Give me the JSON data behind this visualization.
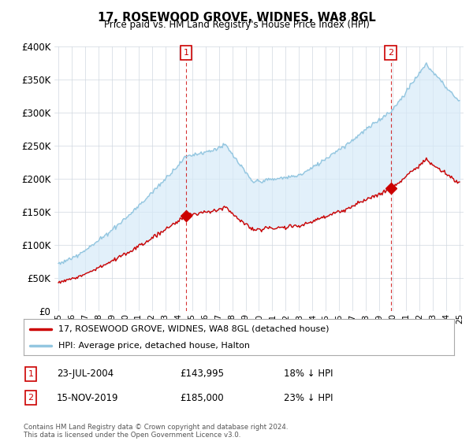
{
  "title": "17, ROSEWOOD GROVE, WIDNES, WA8 8GL",
  "subtitle": "Price paid vs. HM Land Registry's House Price Index (HPI)",
  "ylabel_values": [
    0,
    50000,
    100000,
    150000,
    200000,
    250000,
    300000,
    350000,
    400000
  ],
  "ylim": [
    0,
    400000
  ],
  "hpi_color": "#93c6e0",
  "hpi_fill_color": "#d6eaf8",
  "price_color": "#cc0000",
  "dashed_color": "#cc0000",
  "p1_year": 2004.55,
  "p1_price": 143995,
  "p2_year": 2019.87,
  "p2_price": 185000,
  "legend_label1": "17, ROSEWOOD GROVE, WIDNES, WA8 8GL (detached house)",
  "legend_label2": "HPI: Average price, detached house, Halton",
  "footer": "Contains HM Land Registry data © Crown copyright and database right 2024.\nThis data is licensed under the Open Government Licence v3.0.",
  "table_row1": [
    "1",
    "23-JUL-2004",
    "£143,995",
    "18% ↓ HPI"
  ],
  "table_row2": [
    "2",
    "15-NOV-2019",
    "£185,000",
    "23% ↓ HPI"
  ],
  "background_color": "#ffffff",
  "grid_color": "#d0d8e0"
}
